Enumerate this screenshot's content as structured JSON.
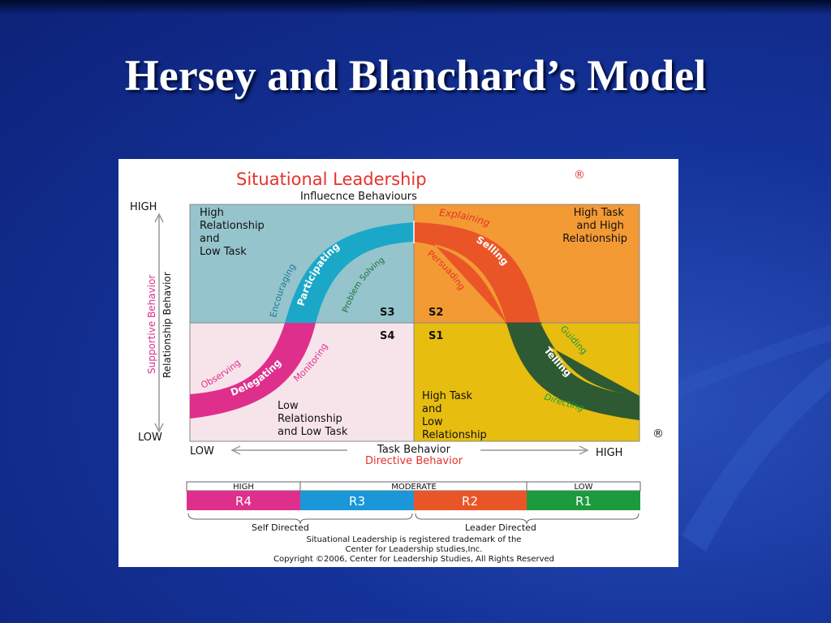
{
  "slide": {
    "title": "Hersey and Blanchard’s Model"
  },
  "diagram": {
    "title": "Situational Leadership",
    "title_mark": "®",
    "subtitle": "Influecnce Behaviours",
    "y_axis": {
      "high": "HIGH",
      "low": "LOW",
      "label_red": "Supportive Behavior",
      "label_black": "Relationship Behavior"
    },
    "x_axis": {
      "low": "LOW",
      "high": "HIGH",
      "label_black": "Task Behavior",
      "label_red": "Directive Behavior"
    },
    "side_mark": "®",
    "quadrants": {
      "top_left": {
        "lines": [
          "High",
          "Relationship",
          "and",
          "Low Task"
        ],
        "color": "#95c4cc"
      },
      "top_right": {
        "lines": [
          "High Task",
          "and High",
          "Relationship"
        ],
        "color": "#f39a35"
      },
      "bottom_left": {
        "lines": [
          "Low",
          "Relationship",
          "and Low Task"
        ],
        "color": "#f7e4ea"
      },
      "bottom_right": {
        "lines": [
          "High Task",
          "and",
          "Low",
          "Relationship"
        ],
        "color": "#e7bd10"
      }
    },
    "styles": {
      "s3": "S3",
      "s2": "S2",
      "s4": "S4",
      "s1": "S1"
    },
    "curve": {
      "s4": {
        "label": "Delegating",
        "color": "#df2f8c"
      },
      "s3": {
        "label": "Participating",
        "color": "#1ba8c8"
      },
      "s2": {
        "label": "Selling",
        "color": "#ea5528"
      },
      "s1": {
        "label": "Telling",
        "color": "#2e5a33"
      }
    },
    "behaviours": {
      "observing": "Observing",
      "monitoring": "Monitoring",
      "encouraging": "Encouraging",
      "problem_solving": "Problem Solving",
      "explaining": "Explaining",
      "persuading": "Persuading",
      "guiding": "Guiding",
      "directing": "Directing"
    },
    "readiness": {
      "levels": [
        {
          "header": "HIGH",
          "code": "R4",
          "color": "#df2f8c"
        },
        {
          "header": "MODERATE",
          "code": "R3",
          "color": "#1b97d8"
        },
        {
          "header": "",
          "code": "R2",
          "color": "#ea5528"
        },
        {
          "header": "LOW",
          "code": "R1",
          "color": "#1c9a3e"
        }
      ],
      "self_directed": "Self Directed",
      "leader_directed": "Leader Directed"
    },
    "footer": [
      "Situational Leadership is registered trademark of the",
      "Center for Leadership studies,Inc.",
      "Copyright ©2006, Center for Leadership Studies, All Rights Reserved"
    ]
  }
}
